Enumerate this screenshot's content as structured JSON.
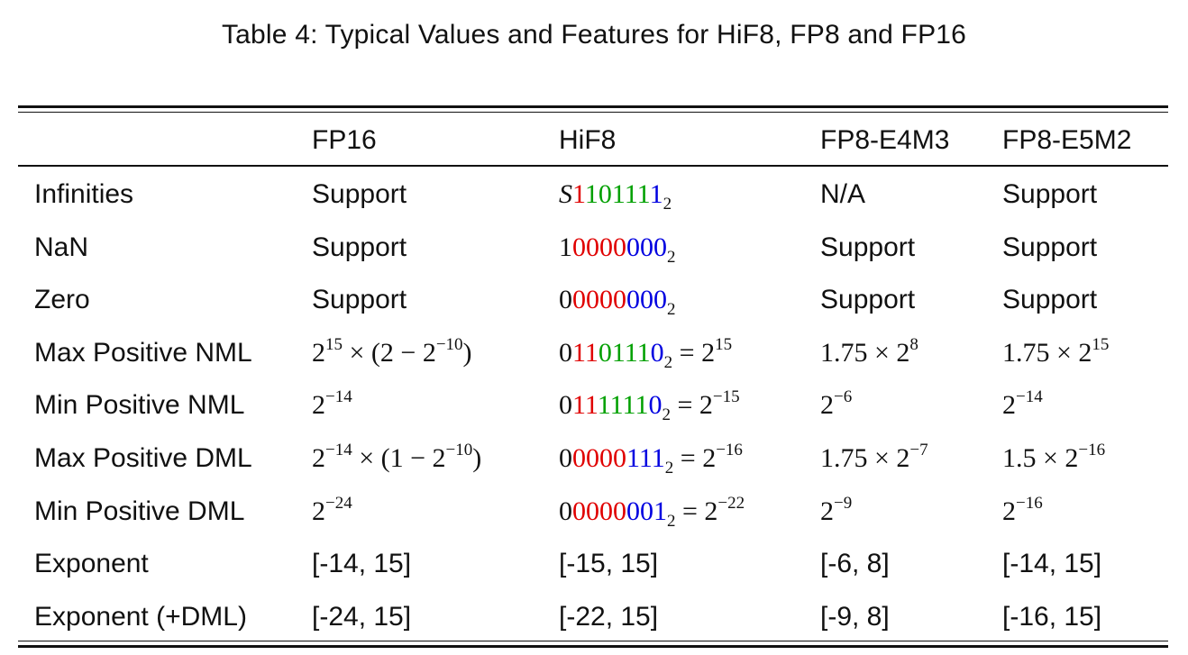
{
  "caption": "Table 4: Typical Values and Features for HiF8, FP8 and FP16",
  "columns": [
    "",
    "FP16",
    "HiF8",
    "FP8-E4M3",
    "FP8-E5M2"
  ],
  "rows": [
    {
      "label": "Infinities",
      "fp16": "Support",
      "hif8": {
        "sign": "S",
        "seg_red": "1",
        "seg_green": "10111",
        "seg_blue": "1",
        "sub": "2"
      },
      "e4m3": "N/A",
      "e5m2": "Support"
    },
    {
      "label": "NaN",
      "fp16": "Support",
      "hif8": {
        "sign": "1",
        "seg_red": "0000",
        "seg_blue": "000",
        "sub": "2"
      },
      "e4m3": "Support",
      "e5m2": "Support"
    },
    {
      "label": "Zero",
      "fp16": "Support",
      "hif8": {
        "sign": "0",
        "seg_red": "0000",
        "seg_blue": "000",
        "sub": "2"
      },
      "e4m3": "Support",
      "e5m2": "Support"
    },
    {
      "label": "Max Positive NML",
      "fp16": {
        "base": "2",
        "exp": "15",
        "rest": " × (2 − 2",
        "exp2": "−10",
        "tail": ")"
      },
      "hif8": {
        "sign": "0",
        "seg_red": "11",
        "seg_green": "0111",
        "seg_blue": "0",
        "sub": "2",
        "eq": " = 2",
        "exp": "15"
      },
      "e4m3": {
        "text": "1.75 × 2",
        "exp": "8"
      },
      "e5m2": {
        "text": "1.75 × 2",
        "exp": "15"
      }
    },
    {
      "label": "Min Positive NML",
      "fp16": {
        "base": "2",
        "exp": "−14"
      },
      "hif8": {
        "sign": "0",
        "seg_red": "11",
        "seg_green": "1111",
        "seg_blue": "0",
        "sub": "2",
        "eq": " = 2",
        "exp": "−15"
      },
      "e4m3": {
        "text": "2",
        "exp": "−6"
      },
      "e5m2": {
        "text": "2",
        "exp": "−14"
      }
    },
    {
      "label": "Max Positive DML",
      "fp16": {
        "base": "2",
        "exp": "−14",
        "rest": " × (1 − 2",
        "exp2": "−10",
        "tail": ")"
      },
      "hif8": {
        "sign": "0",
        "seg_red": "0000",
        "seg_blue": "111",
        "sub": "2",
        "eq": " = 2",
        "exp": "−16"
      },
      "e4m3": {
        "text": "1.75 × 2",
        "exp": "−7"
      },
      "e5m2": {
        "text": "1.5 × 2",
        "exp": "−16"
      }
    },
    {
      "label": "Min Positive DML",
      "fp16": {
        "base": "2",
        "exp": "−24"
      },
      "hif8": {
        "sign": "0",
        "seg_red": "0000",
        "seg_blue": "001",
        "sub": "2",
        "eq": " = 2",
        "exp": "−22"
      },
      "e4m3": {
        "text": "2",
        "exp": "−9"
      },
      "e5m2": {
        "text": "2",
        "exp": "−16"
      }
    },
    {
      "label": "Exponent",
      "fp16": "[-14, 15]",
      "hif8": "[-15, 15]",
      "e4m3": "[-6, 8]",
      "e5m2": "[-14, 15]"
    },
    {
      "label": "Exponent (+DML)",
      "fp16": "[-24, 15]",
      "hif8": "[-22, 15]",
      "e4m3": "[-9, 8]",
      "e5m2": "[-16, 15]"
    }
  ]
}
